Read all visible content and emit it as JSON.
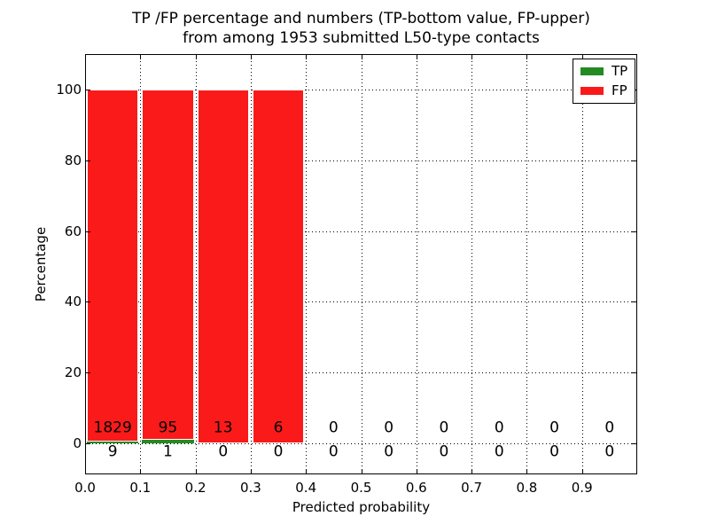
{
  "chart_data": {
    "type": "bar",
    "stacked": true,
    "title_lines": [
      "TP /FP percentage and numbers (TP-bottom value, FP-upper)",
      "from among 1953 submitted L50-type contacts"
    ],
    "xlabel": "Predicted probability",
    "ylabel": "Percentage",
    "xlim": [
      0.0,
      1.0
    ],
    "ylim": [
      -8.75,
      110
    ],
    "xticks": [
      "0.0",
      "0.1",
      "0.2",
      "0.3",
      "0.4",
      "0.5",
      "0.6",
      "0.7",
      "0.8",
      "0.9"
    ],
    "yticks": [
      "0",
      "20",
      "40",
      "60",
      "80",
      "100"
    ],
    "grid": true,
    "legend_position": "upper right",
    "total_submitted": 1953,
    "bin_edges": [
      0.0,
      0.1,
      0.2,
      0.3,
      0.4,
      0.5,
      0.6,
      0.7,
      0.8,
      0.9,
      1.0
    ],
    "series": [
      {
        "name": "TP",
        "color": "#228b22",
        "counts": [
          9,
          1,
          0,
          0,
          0,
          0,
          0,
          0,
          0,
          0
        ],
        "percents": [
          0.49,
          1.04,
          0,
          0,
          0,
          0,
          0,
          0,
          0,
          0
        ]
      },
      {
        "name": "FP",
        "color": "#fa1a1a",
        "counts": [
          1829,
          95,
          13,
          6,
          0,
          0,
          0,
          0,
          0,
          0
        ],
        "percents": [
          99.51,
          98.96,
          100,
          100,
          0,
          0,
          0,
          0,
          0,
          0
        ]
      }
    ]
  },
  "colors": {
    "tp_green": "#228b22",
    "fp_red": "#fa1a1a",
    "frame": "#000000",
    "grid": "#000000",
    "background": "#ffffff"
  }
}
